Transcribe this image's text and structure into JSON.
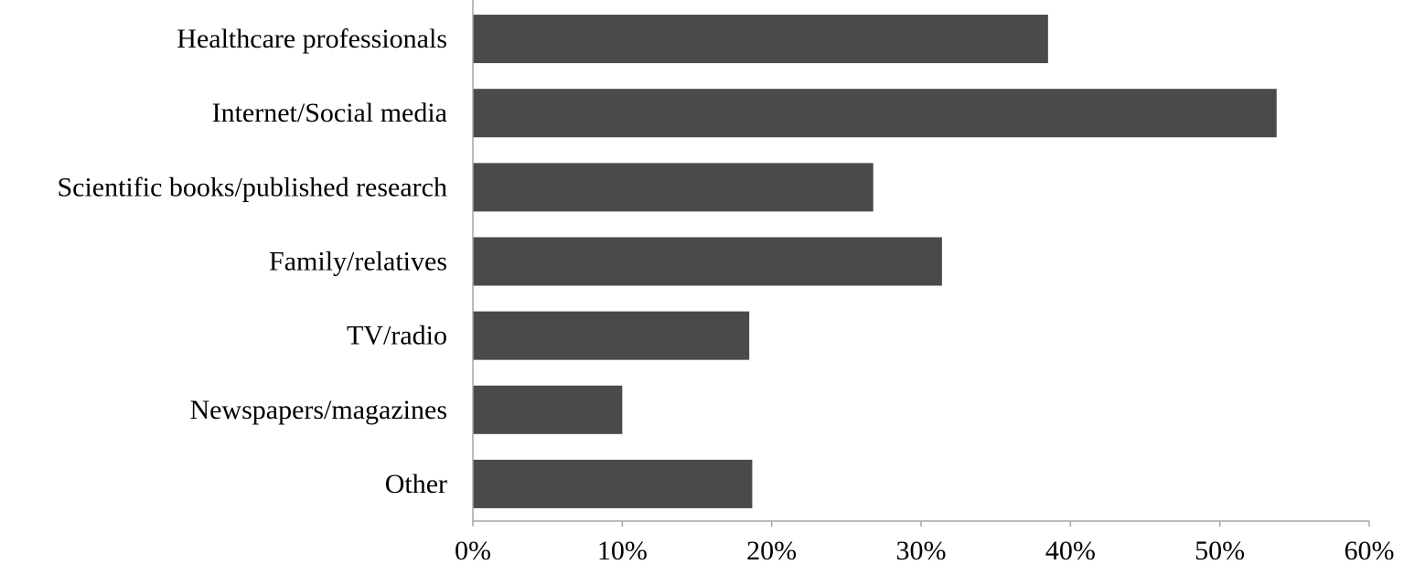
{
  "chart_data": {
    "type": "bar",
    "orientation": "horizontal",
    "categories": [
      "Healthcare professionals",
      "Internet/Social media",
      "Scientific books/published research",
      "Family/relatives",
      "TV/radio",
      "Newspapers/magazines",
      "Other"
    ],
    "values": [
      38.5,
      53.8,
      26.8,
      31.4,
      18.5,
      10.0,
      18.7
    ],
    "xlim": [
      0,
      60
    ],
    "ticks": [
      0,
      10,
      20,
      30,
      40,
      50,
      60
    ],
    "tick_labels": [
      "0%",
      "10%",
      "20%",
      "30%",
      "40%",
      "50%",
      "60%"
    ],
    "title": "",
    "xlabel": "",
    "ylabel": "",
    "grid": false,
    "legend": "none",
    "bar_color": "#4a4a4a",
    "axis_color": "#a6a6a6"
  }
}
